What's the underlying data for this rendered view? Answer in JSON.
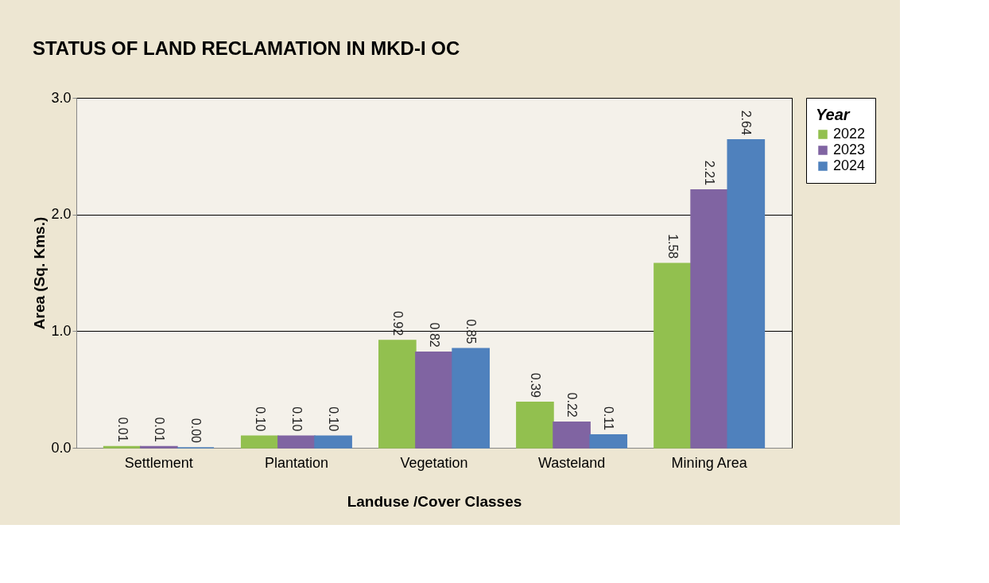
{
  "chart_data": {
    "type": "bar",
    "title": "STATUS OF LAND RECLAMATION  IN MKD-I OC",
    "xlabel": "Landuse /Cover Classes",
    "ylabel": "Area (Sq. Kms.)",
    "legend_title": "Year",
    "legend": "right",
    "grid": "y",
    "categories": [
      "Settlement",
      "Plantation",
      "Vegetation",
      "Wasteland",
      "Mining Area"
    ],
    "ylim": [
      0,
      3
    ],
    "yticks": [
      {
        "value": 0,
        "label": "0.0"
      },
      {
        "value": 1,
        "label": "1.0"
      },
      {
        "value": 2,
        "label": "2.0"
      },
      {
        "value": 3,
        "label": "3.0"
      }
    ],
    "series": [
      {
        "name": "2022",
        "color": "#92c04f",
        "values": [
          0.01,
          0.1,
          0.92,
          0.39,
          1.58
        ],
        "value_labels": [
          "0.01",
          "0.10",
          "0.92",
          "0.39",
          "1.58"
        ]
      },
      {
        "name": "2023",
        "color": "#8064a2",
        "values": [
          0.01,
          0.1,
          0.82,
          0.22,
          2.21
        ],
        "value_labels": [
          "0.01",
          "0.10",
          "0.82",
          "0.22",
          "2.21"
        ]
      },
      {
        "name": "2024",
        "color": "#4f81bd",
        "values": [
          0.0,
          0.1,
          0.85,
          0.11,
          2.64
        ],
        "value_labels": [
          "0.00",
          "0.10",
          "0.85",
          "0.11",
          "2.64"
        ]
      }
    ]
  }
}
